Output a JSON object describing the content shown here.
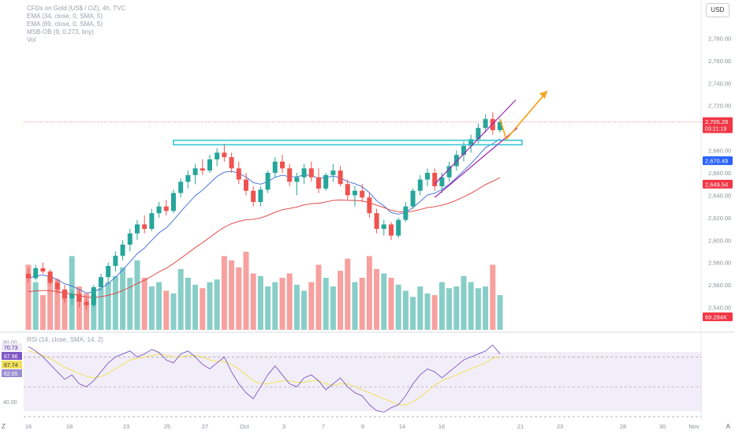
{
  "legend": {
    "title": "CFDs on Gold (US$ / OZ), 4h, TVC",
    "ema1": "EMA (34, close, 0, SMA, 5)",
    "ema2": "EMA (89, close, 0, SMA, 5)",
    "msb": "MSB-OB (9, 0.273, tiny)",
    "vol": "Vol"
  },
  "currency_button": "USD",
  "rsi_legend": "RSI (14, close, SMA, 14, 2)",
  "zoom_label": "Z",
  "tz_label": "A",
  "colors": {
    "up": "#26a69a",
    "down": "#ef5350",
    "ema_fast": "#3d6ad8",
    "ema_slow": "#e03b3b",
    "zone": "#2bc4d6",
    "channel": "#9c27b0",
    "projection": "#f5a623",
    "rsi": "#7e57c2",
    "rsi_ma": "#f1e05a"
  },
  "chart_data": {
    "type": "candlestick",
    "symbol": "CFDs on Gold (US$ / OZ), 4h, TVC",
    "price_axis": {
      "ylim": [
        2520,
        2800
      ],
      "ticks": [
        "2,780.00",
        "2,760.00",
        "2,740.00",
        "2,720.00",
        "2,700.00",
        "2,680.00",
        "2,660.00",
        "2,640.00",
        "2,620.00",
        "2,600.00",
        "2,580.00",
        "2,560.00",
        "2,540.00"
      ]
    },
    "x_axis_labels": [
      "16",
      "18",
      "23",
      "25",
      "27",
      "Oct",
      "3",
      "7",
      "9",
      "14",
      "16",
      "21",
      "23",
      "28",
      "30",
      "Nov"
    ],
    "price_labels": [
      {
        "name": "last-price",
        "text": "2,705.28",
        "sub": "03:21:19",
        "price": 2705.28,
        "color": "#f23645"
      },
      {
        "name": "ema-fast-value",
        "text": "2,670.49",
        "price": 2670.49,
        "color": "#2962ff"
      },
      {
        "name": "ema-slow-value",
        "text": "2,649.54",
        "price": 2649.54,
        "color": "#f23645"
      },
      {
        "name": "volume-value",
        "text": "69.284K",
        "color": "#f23645"
      }
    ],
    "resistance_price": 2687,
    "ohlc": [
      [
        2570,
        2575,
        2562,
        2566
      ],
      [
        2566,
        2578,
        2564,
        2575
      ],
      [
        2575,
        2580,
        2570,
        2572
      ],
      [
        2572,
        2574,
        2560,
        2562
      ],
      [
        2562,
        2566,
        2552,
        2556
      ],
      [
        2556,
        2560,
        2544,
        2548
      ],
      [
        2548,
        2555,
        2542,
        2552
      ],
      [
        2552,
        2556,
        2540,
        2545
      ],
      [
        2545,
        2548,
        2538,
        2542
      ],
      [
        2542,
        2560,
        2540,
        2558
      ],
      [
        2558,
        2570,
        2555,
        2567
      ],
      [
        2567,
        2580,
        2562,
        2577
      ],
      [
        2577,
        2590,
        2572,
        2586
      ],
      [
        2586,
        2600,
        2582,
        2596
      ],
      [
        2596,
        2610,
        2590,
        2606
      ],
      [
        2606,
        2618,
        2600,
        2614
      ],
      [
        2614,
        2622,
        2606,
        2610
      ],
      [
        2610,
        2628,
        2608,
        2624
      ],
      [
        2624,
        2634,
        2620,
        2630
      ],
      [
        2630,
        2636,
        2622,
        2626
      ],
      [
        2626,
        2645,
        2624,
        2642
      ],
      [
        2642,
        2655,
        2638,
        2652
      ],
      [
        2652,
        2662,
        2646,
        2658
      ],
      [
        2658,
        2668,
        2650,
        2664
      ],
      [
        2664,
        2672,
        2658,
        2662
      ],
      [
        2662,
        2676,
        2660,
        2672
      ],
      [
        2672,
        2682,
        2666,
        2678
      ],
      [
        2678,
        2686,
        2670,
        2674
      ],
      [
        2674,
        2678,
        2660,
        2664
      ],
      [
        2664,
        2670,
        2650,
        2654
      ],
      [
        2654,
        2660,
        2640,
        2644
      ],
      [
        2644,
        2648,
        2630,
        2634
      ],
      [
        2634,
        2648,
        2630,
        2645
      ],
      [
        2645,
        2662,
        2642,
        2660
      ],
      [
        2660,
        2674,
        2656,
        2670
      ],
      [
        2670,
        2676,
        2660,
        2664
      ],
      [
        2664,
        2668,
        2648,
        2652
      ],
      [
        2652,
        2660,
        2640,
        2656
      ],
      [
        2656,
        2668,
        2650,
        2664
      ],
      [
        2664,
        2670,
        2652,
        2656
      ],
      [
        2656,
        2664,
        2642,
        2646
      ],
      [
        2646,
        2660,
        2644,
        2658
      ],
      [
        2658,
        2668,
        2652,
        2662
      ],
      [
        2662,
        2666,
        2648,
        2650
      ],
      [
        2650,
        2654,
        2636,
        2640
      ],
      [
        2640,
        2648,
        2630,
        2644
      ],
      [
        2644,
        2650,
        2634,
        2638
      ],
      [
        2638,
        2642,
        2620,
        2624
      ],
      [
        2624,
        2628,
        2606,
        2610
      ],
      [
        2610,
        2618,
        2604,
        2614
      ],
      [
        2614,
        2616,
        2600,
        2604
      ],
      [
        2604,
        2620,
        2602,
        2618
      ],
      [
        2618,
        2634,
        2616,
        2630
      ],
      [
        2630,
        2646,
        2628,
        2644
      ],
      [
        2644,
        2658,
        2640,
        2654
      ],
      [
        2654,
        2664,
        2648,
        2660
      ],
      [
        2660,
        2664,
        2644,
        2648
      ],
      [
        2648,
        2660,
        2642,
        2656
      ],
      [
        2656,
        2670,
        2652,
        2666
      ],
      [
        2666,
        2680,
        2662,
        2676
      ],
      [
        2676,
        2688,
        2670,
        2684
      ],
      [
        2684,
        2694,
        2678,
        2690
      ],
      [
        2690,
        2704,
        2686,
        2700
      ],
      [
        2700,
        2712,
        2696,
        2708
      ],
      [
        2708,
        2714,
        2694,
        2698
      ],
      [
        2698,
        2708,
        2696,
        2705.28
      ]
    ],
    "volume": [
      0.75,
      0.55,
      0.4,
      0.62,
      0.58,
      0.45,
      0.85,
      0.5,
      0.42,
      0.4,
      0.48,
      0.55,
      0.62,
      0.72,
      0.6,
      0.8,
      0.6,
      0.5,
      0.55,
      0.45,
      0.42,
      0.7,
      0.6,
      0.52,
      0.48,
      0.55,
      0.58,
      0.85,
      0.8,
      0.72,
      0.9,
      0.65,
      0.62,
      0.5,
      0.55,
      0.6,
      0.65,
      0.52,
      0.45,
      0.55,
      0.75,
      0.6,
      0.5,
      0.68,
      0.82,
      0.55,
      0.6,
      0.85,
      0.7,
      0.65,
      0.6,
      0.52,
      0.45,
      0.38,
      0.5,
      0.42,
      0.4,
      0.55,
      0.48,
      0.5,
      0.62,
      0.55,
      0.48,
      0.5,
      0.75,
      0.4
    ],
    "rsi": {
      "ylim": [
        30,
        85
      ],
      "ticks": [
        "80.00",
        "40.00"
      ],
      "levels": [
        70,
        50,
        30
      ],
      "labels": [
        {
          "text": "70.73",
          "color": "#7e57c2"
        },
        {
          "text": "67.96",
          "color": "#ffffff"
        },
        {
          "text": "67.74",
          "color": "#f1e05a"
        },
        {
          "text": "62.65",
          "color": "#ffffff"
        }
      ],
      "values": [
        77,
        74,
        70,
        65,
        60,
        55,
        58,
        52,
        50,
        54,
        60,
        66,
        70,
        72,
        74,
        70,
        72,
        75,
        73,
        68,
        66,
        72,
        74,
        70,
        65,
        62,
        66,
        70,
        60,
        52,
        46,
        42,
        50,
        58,
        64,
        58,
        52,
        50,
        56,
        58,
        54,
        48,
        52,
        56,
        50,
        46,
        44,
        38,
        34,
        33,
        36,
        38,
        44,
        52,
        58,
        62,
        60,
        56,
        60,
        64,
        68,
        70,
        72,
        74,
        78,
        72
      ],
      "ma": [
        74,
        73,
        71,
        69,
        66,
        63,
        61,
        59,
        57,
        56,
        57,
        59,
        62,
        65,
        68,
        69,
        70,
        71,
        72,
        71,
        70,
        70,
        71,
        71,
        70,
        68,
        67,
        67,
        65,
        62,
        58,
        54,
        52,
        52,
        53,
        54,
        54,
        53,
        53,
        54,
        54,
        52,
        51,
        52,
        52,
        50,
        48,
        46,
        44,
        42,
        40,
        38,
        38,
        40,
        43,
        47,
        51,
        54,
        56,
        58,
        60,
        62,
        64,
        66,
        69,
        70
      ]
    }
  }
}
